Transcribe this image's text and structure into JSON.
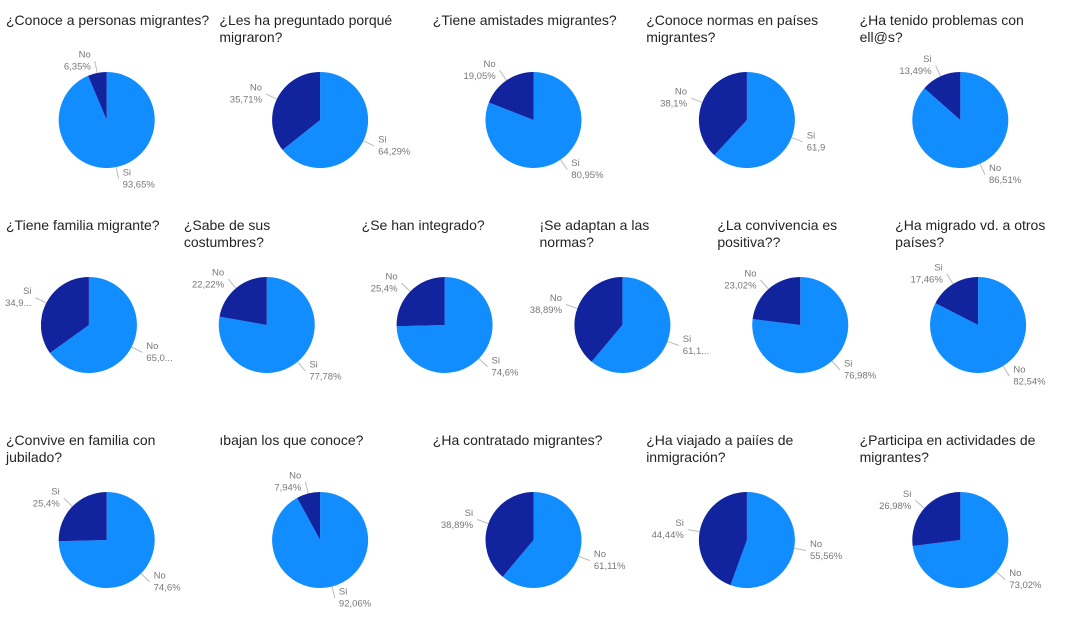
{
  "chart_data": [
    {
      "type": "pie",
      "title": "¿Conoce a personas migrantes?",
      "categories": [
        "Si",
        "No"
      ],
      "values": [
        93.65,
        6.35
      ],
      "value_labels": [
        "93,65%",
        "6,35%"
      ],
      "colors": [
        "#118dff",
        "#12239e"
      ]
    },
    {
      "type": "pie",
      "title": "¿Les ha preguntado porqué migraron?",
      "categories": [
        "Si",
        "No"
      ],
      "values": [
        64.29,
        35.71
      ],
      "value_labels": [
        "64,29%",
        "35,71%"
      ],
      "colors": [
        "#118dff",
        "#12239e"
      ]
    },
    {
      "type": "pie",
      "title": "¿Tiene amistades migrantes?",
      "categories": [
        "Si",
        "No"
      ],
      "values": [
        80.95,
        19.05
      ],
      "value_labels": [
        "80,95%",
        "19,05%"
      ],
      "colors": [
        "#118dff",
        "#12239e"
      ]
    },
    {
      "type": "pie",
      "title": "¿Conoce normas en países migrantes?",
      "categories": [
        "Si",
        "No"
      ],
      "values": [
        61.9,
        38.1
      ],
      "value_labels": [
        "61,9",
        "38,1%"
      ],
      "colors": [
        "#118dff",
        "#12239e"
      ]
    },
    {
      "type": "pie",
      "title": "¿Ha tenido problemas con ell@s?",
      "categories": [
        "No",
        "Si"
      ],
      "values": [
        86.51,
        13.49
      ],
      "value_labels": [
        "86,51%",
        "13,49%"
      ],
      "colors": [
        "#118dff",
        "#12239e"
      ]
    },
    {
      "type": "pie",
      "title": "¿Tiene familia migrante?",
      "categories": [
        "No",
        "Si"
      ],
      "values": [
        65.08,
        34.92
      ],
      "value_labels": [
        "65,0...",
        "34,9..."
      ],
      "colors": [
        "#118dff",
        "#12239e"
      ]
    },
    {
      "type": "pie",
      "title": "¿Sabe de sus costumbres?",
      "categories": [
        "Si",
        "No"
      ],
      "values": [
        77.78,
        22.22
      ],
      "value_labels": [
        "77,78%",
        "22,22%"
      ],
      "colors": [
        "#118dff",
        "#12239e"
      ]
    },
    {
      "type": "pie",
      "title": "¿Se han integrado?",
      "categories": [
        "Si",
        "No"
      ],
      "values": [
        74.6,
        25.4
      ],
      "value_labels": [
        "74,6%",
        "25,4%"
      ],
      "colors": [
        "#118dff",
        "#12239e"
      ]
    },
    {
      "type": "pie",
      "title": "¡Se adaptan a las normas?",
      "categories": [
        "Si",
        "No"
      ],
      "values": [
        61.11,
        38.89
      ],
      "value_labels": [
        "61,1...",
        "38,89%"
      ],
      "colors": [
        "#118dff",
        "#12239e"
      ]
    },
    {
      "type": "pie",
      "title": "¿La convivencia es positiva??",
      "categories": [
        "Si",
        "No"
      ],
      "values": [
        76.98,
        23.02
      ],
      "value_labels": [
        "76,98%",
        "23,02%"
      ],
      "colors": [
        "#118dff",
        "#12239e"
      ]
    },
    {
      "type": "pie",
      "title": "¿Ha migrado vd. a otros países?",
      "categories": [
        "No",
        "Si"
      ],
      "values": [
        82.54,
        17.46
      ],
      "value_labels": [
        "82,54%",
        "17,46%"
      ],
      "colors": [
        "#118dff",
        "#12239e"
      ]
    },
    {
      "type": "pie",
      "title": "¿Convive en familia con jubilado?",
      "categories": [
        "No",
        "Si"
      ],
      "values": [
        74.6,
        25.4
      ],
      "value_labels": [
        "74,6%",
        "25,4%"
      ],
      "colors": [
        "#118dff",
        "#12239e"
      ]
    },
    {
      "type": "pie",
      "title": "ıbajan los que conoce?",
      "categories": [
        "Si",
        "No"
      ],
      "values": [
        92.06,
        7.94
      ],
      "value_labels": [
        "92,06%",
        "7,94%"
      ],
      "colors": [
        "#118dff",
        "#12239e"
      ]
    },
    {
      "type": "pie",
      "title": "¿Ha contratado migrantes?",
      "categories": [
        "No",
        "Si"
      ],
      "values": [
        61.11,
        38.89
      ],
      "value_labels": [
        "61,11%",
        "38,89%"
      ],
      "colors": [
        "#118dff",
        "#12239e"
      ]
    },
    {
      "type": "pie",
      "title": "¿Ha viajado a paiíes de inmigración?",
      "categories": [
        "No",
        "Si"
      ],
      "values": [
        55.56,
        44.44
      ],
      "value_labels": [
        "55,56%",
        "44,44%"
      ],
      "colors": [
        "#118dff",
        "#12239e"
      ]
    },
    {
      "type": "pie",
      "title": "¿Participa en actividades de migrantes?",
      "categories": [
        "No",
        "Si"
      ],
      "values": [
        73.02,
        26.98
      ],
      "value_labels": [
        "73,02%",
        "26,98%"
      ],
      "colors": [
        "#118dff",
        "#12239e"
      ]
    }
  ]
}
